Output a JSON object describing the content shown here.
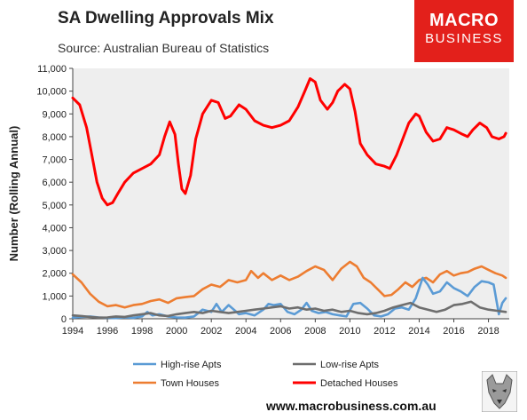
{
  "header": {
    "title": "SA Dwelling Approvals Mix",
    "subtitle": "Source: Australian Bureau of Statistics",
    "logo_line1": "MACRO",
    "logo_line2": "BUSINESS"
  },
  "footer": {
    "url": "www.macrobusiness.com.au"
  },
  "colors": {
    "high_rise": "#5b9bd5",
    "low_rise": "#6e6e6e",
    "town_houses": "#ed7d31",
    "detached": "#ff0000",
    "logo": "#e3201b",
    "plot_bg": "#eeeeee"
  },
  "chart_data": {
    "type": "line",
    "title": "SA Dwelling Approvals Mix",
    "ylabel": "Number (Rolling Annual)",
    "xlabel": "",
    "xlim": [
      1994,
      2019.2
    ],
    "ylim": [
      0,
      11000
    ],
    "yticks": [
      0,
      1000,
      2000,
      3000,
      4000,
      5000,
      6000,
      7000,
      8000,
      9000,
      10000,
      11000
    ],
    "ytick_labels": [
      "0",
      "1,000",
      "2,000",
      "3,000",
      "4,000",
      "5,000",
      "6,000",
      "7,000",
      "8,000",
      "9,000",
      "10,000",
      "11,000"
    ],
    "xticks": [
      1994,
      1996,
      1998,
      2000,
      2002,
      2004,
      2006,
      2008,
      2010,
      2012,
      2014,
      2016,
      2018
    ],
    "xtick_labels": [
      "1994",
      "1996",
      "1998",
      "2000",
      "2002",
      "2004",
      "2006",
      "2008",
      "2010",
      "2012",
      "2014",
      "2016",
      "2018"
    ],
    "grid": false,
    "legend_position": "bottom",
    "series": [
      {
        "name": "Detached Houses",
        "key": "detached",
        "points": [
          [
            1994,
            9700
          ],
          [
            1994.4,
            9400
          ],
          [
            1994.8,
            8400
          ],
          [
            1995.1,
            7200
          ],
          [
            1995.4,
            6000
          ],
          [
            1995.7,
            5300
          ],
          [
            1996,
            5000
          ],
          [
            1996.3,
            5100
          ],
          [
            1996.6,
            5500
          ],
          [
            1997,
            6000
          ],
          [
            1997.5,
            6400
          ],
          [
            1998,
            6600
          ],
          [
            1998.5,
            6800
          ],
          [
            1999,
            7200
          ],
          [
            1999.3,
            8000
          ],
          [
            1999.6,
            8650
          ],
          [
            1999.9,
            8100
          ],
          [
            2000.1,
            6800
          ],
          [
            2000.3,
            5700
          ],
          [
            2000.5,
            5500
          ],
          [
            2000.8,
            6300
          ],
          [
            2001.1,
            7900
          ],
          [
            2001.5,
            9000
          ],
          [
            2002,
            9600
          ],
          [
            2002.4,
            9500
          ],
          [
            2002.8,
            8800
          ],
          [
            2003.1,
            8900
          ],
          [
            2003.6,
            9400
          ],
          [
            2004,
            9200
          ],
          [
            2004.5,
            8700
          ],
          [
            2005,
            8500
          ],
          [
            2005.5,
            8400
          ],
          [
            2006,
            8500
          ],
          [
            2006.5,
            8700
          ],
          [
            2007,
            9300
          ],
          [
            2007.4,
            10000
          ],
          [
            2007.7,
            10550
          ],
          [
            2008,
            10400
          ],
          [
            2008.3,
            9600
          ],
          [
            2008.7,
            9200
          ],
          [
            2009,
            9500
          ],
          [
            2009.3,
            10000
          ],
          [
            2009.7,
            10300
          ],
          [
            2010,
            10100
          ],
          [
            2010.3,
            9100
          ],
          [
            2010.6,
            7700
          ],
          [
            2011,
            7200
          ],
          [
            2011.5,
            6800
          ],
          [
            2012,
            6700
          ],
          [
            2012.3,
            6600
          ],
          [
            2012.7,
            7200
          ],
          [
            2013,
            7800
          ],
          [
            2013.4,
            8600
          ],
          [
            2013.8,
            9000
          ],
          [
            2014,
            8900
          ],
          [
            2014.4,
            8200
          ],
          [
            2014.8,
            7800
          ],
          [
            2015.2,
            7900
          ],
          [
            2015.6,
            8400
          ],
          [
            2016,
            8300
          ],
          [
            2016.5,
            8100
          ],
          [
            2016.8,
            8000
          ],
          [
            2017.1,
            8300
          ],
          [
            2017.5,
            8600
          ],
          [
            2017.9,
            8400
          ],
          [
            2018.2,
            8000
          ],
          [
            2018.6,
            7900
          ],
          [
            2018.9,
            8000
          ],
          [
            2019.0,
            8150
          ]
        ]
      },
      {
        "name": "Town Houses",
        "key": "town_houses",
        "points": [
          [
            1994,
            1950
          ],
          [
            1994.5,
            1600
          ],
          [
            1995,
            1100
          ],
          [
            1995.5,
            750
          ],
          [
            1996,
            550
          ],
          [
            1996.5,
            600
          ],
          [
            1997,
            500
          ],
          [
            1997.5,
            600
          ],
          [
            1998,
            650
          ],
          [
            1998.5,
            780
          ],
          [
            1999,
            850
          ],
          [
            1999.5,
            700
          ],
          [
            2000,
            900
          ],
          [
            2000.5,
            950
          ],
          [
            2001,
            1000
          ],
          [
            2001.5,
            1300
          ],
          [
            2002,
            1500
          ],
          [
            2002.5,
            1400
          ],
          [
            2003,
            1700
          ],
          [
            2003.5,
            1600
          ],
          [
            2004,
            1700
          ],
          [
            2004.3,
            2100
          ],
          [
            2004.7,
            1800
          ],
          [
            2005,
            2000
          ],
          [
            2005.5,
            1700
          ],
          [
            2006,
            1900
          ],
          [
            2006.5,
            1700
          ],
          [
            2007,
            1850
          ],
          [
            2007.5,
            2100
          ],
          [
            2008,
            2300
          ],
          [
            2008.5,
            2150
          ],
          [
            2009,
            1700
          ],
          [
            2009.5,
            2200
          ],
          [
            2010,
            2500
          ],
          [
            2010.4,
            2300
          ],
          [
            2010.8,
            1800
          ],
          [
            2011.2,
            1600
          ],
          [
            2011.6,
            1300
          ],
          [
            2012,
            1000
          ],
          [
            2012.4,
            1050
          ],
          [
            2012.8,
            1300
          ],
          [
            2013.2,
            1600
          ],
          [
            2013.6,
            1400
          ],
          [
            2014,
            1700
          ],
          [
            2014.4,
            1800
          ],
          [
            2014.8,
            1600
          ],
          [
            2015.2,
            1950
          ],
          [
            2015.6,
            2100
          ],
          [
            2016,
            1900
          ],
          [
            2016.4,
            2000
          ],
          [
            2016.8,
            2050
          ],
          [
            2017.2,
            2200
          ],
          [
            2017.6,
            2300
          ],
          [
            2018,
            2150
          ],
          [
            2018.4,
            2000
          ],
          [
            2018.8,
            1900
          ],
          [
            2019.0,
            1800
          ]
        ]
      },
      {
        "name": "High-rise Apts",
        "key": "high_rise",
        "points": [
          [
            1994,
            50
          ],
          [
            1994.5,
            80
          ],
          [
            1995,
            100
          ],
          [
            1995.5,
            60
          ],
          [
            1996,
            40
          ],
          [
            1996.5,
            30
          ],
          [
            1997,
            60
          ],
          [
            1997.5,
            40
          ],
          [
            1998,
            100
          ],
          [
            1998.3,
            300
          ],
          [
            1998.6,
            150
          ],
          [
            1999,
            200
          ],
          [
            1999.5,
            100
          ],
          [
            2000,
            60
          ],
          [
            2000.5,
            50
          ],
          [
            2001,
            100
          ],
          [
            2001.5,
            400
          ],
          [
            2002,
            300
          ],
          [
            2002.3,
            650
          ],
          [
            2002.6,
            300
          ],
          [
            2003,
            600
          ],
          [
            2003.3,
            400
          ],
          [
            2003.6,
            200
          ],
          [
            2004,
            250
          ],
          [
            2004.5,
            150
          ],
          [
            2005,
            400
          ],
          [
            2005.3,
            650
          ],
          [
            2005.6,
            600
          ],
          [
            2006,
            650
          ],
          [
            2006.4,
            300
          ],
          [
            2006.8,
            200
          ],
          [
            2007.2,
            400
          ],
          [
            2007.5,
            700
          ],
          [
            2007.8,
            350
          ],
          [
            2008.2,
            250
          ],
          [
            2008.6,
            300
          ],
          [
            2009,
            200
          ],
          [
            2009.4,
            150
          ],
          [
            2009.8,
            100
          ],
          [
            2010.2,
            650
          ],
          [
            2010.6,
            700
          ],
          [
            2011,
            450
          ],
          [
            2011.4,
            150
          ],
          [
            2011.8,
            100
          ],
          [
            2012.2,
            200
          ],
          [
            2012.6,
            450
          ],
          [
            2013,
            500
          ],
          [
            2013.4,
            400
          ],
          [
            2013.8,
            900
          ],
          [
            2014.2,
            1800
          ],
          [
            2014.5,
            1500
          ],
          [
            2014.8,
            1100
          ],
          [
            2015.2,
            1200
          ],
          [
            2015.6,
            1600
          ],
          [
            2016,
            1350
          ],
          [
            2016.4,
            1200
          ],
          [
            2016.8,
            1000
          ],
          [
            2017.2,
            1400
          ],
          [
            2017.6,
            1650
          ],
          [
            2018,
            1600
          ],
          [
            2018.3,
            1500
          ],
          [
            2018.6,
            200
          ],
          [
            2018.8,
            700
          ],
          [
            2019.0,
            900
          ]
        ]
      },
      {
        "name": "Low-rise Apts",
        "key": "low_rise",
        "points": [
          [
            1994,
            150
          ],
          [
            1994.5,
            120
          ],
          [
            1995,
            80
          ],
          [
            1995.5,
            50
          ],
          [
            1996,
            60
          ],
          [
            1996.5,
            100
          ],
          [
            1997,
            80
          ],
          [
            1997.5,
            150
          ],
          [
            1998,
            200
          ],
          [
            1998.5,
            250
          ],
          [
            1999,
            150
          ],
          [
            1999.5,
            120
          ],
          [
            2000,
            200
          ],
          [
            2000.5,
            250
          ],
          [
            2001,
            300
          ],
          [
            2001.5,
            250
          ],
          [
            2002,
            350
          ],
          [
            2002.5,
            300
          ],
          [
            2003,
            250
          ],
          [
            2003.5,
            300
          ],
          [
            2004,
            350
          ],
          [
            2004.5,
            400
          ],
          [
            2005,
            450
          ],
          [
            2005.5,
            500
          ],
          [
            2006,
            550
          ],
          [
            2006.5,
            450
          ],
          [
            2007,
            500
          ],
          [
            2007.5,
            400
          ],
          [
            2008,
            450
          ],
          [
            2008.5,
            350
          ],
          [
            2009,
            400
          ],
          [
            2009.5,
            300
          ],
          [
            2010,
            350
          ],
          [
            2010.5,
            250
          ],
          [
            2011,
            200
          ],
          [
            2011.5,
            250
          ],
          [
            2012,
            350
          ],
          [
            2012.5,
            500
          ],
          [
            2013,
            600
          ],
          [
            2013.5,
            700
          ],
          [
            2014,
            500
          ],
          [
            2014.5,
            400
          ],
          [
            2015,
            300
          ],
          [
            2015.5,
            400
          ],
          [
            2016,
            600
          ],
          [
            2016.5,
            650
          ],
          [
            2017,
            750
          ],
          [
            2017.5,
            500
          ],
          [
            2018,
            400
          ],
          [
            2018.5,
            350
          ],
          [
            2019.0,
            300
          ]
        ]
      }
    ],
    "legend": [
      {
        "name": "High-rise Apts",
        "key": "high_rise"
      },
      {
        "name": "Low-rise Apts",
        "key": "low_rise"
      },
      {
        "name": "Town Houses",
        "key": "town_houses"
      },
      {
        "name": "Detached Houses",
        "key": "detached"
      }
    ]
  }
}
